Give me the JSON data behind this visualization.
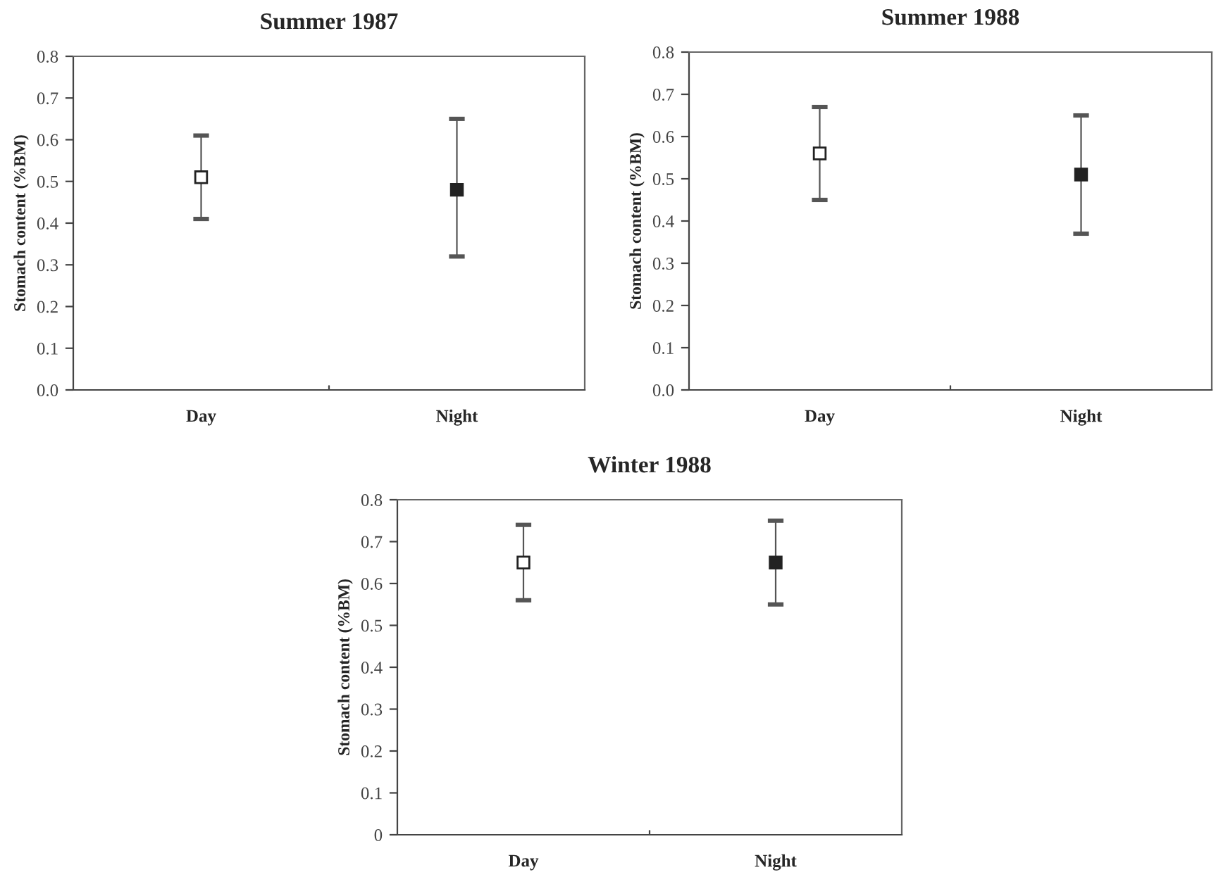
{
  "chart_data": [
    {
      "type": "scatter",
      "title": "Summer 1987",
      "ylabel": "Stomach content (%BM)",
      "categories": [
        "Day",
        "Night"
      ],
      "values": [
        0.51,
        0.48
      ],
      "errors": [
        [
          0.41,
          0.61
        ],
        [
          0.32,
          0.65
        ]
      ],
      "colors": [
        "#ffffff",
        "#222222"
      ],
      "marker": "square",
      "ylim": [
        0,
        0.8
      ],
      "yticks": [
        {
          "value": 0,
          "label": "0.0"
        },
        0.1,
        0.2,
        0.3,
        0.4,
        0.5,
        0.6,
        0.7,
        0.8
      ],
      "grid": false,
      "legend": false
    },
    {
      "type": "scatter",
      "title": "Summer 1988",
      "ylabel": "Stomach content (%BM)",
      "categories": [
        "Day",
        "Night"
      ],
      "values": [
        0.56,
        0.51
      ],
      "errors": [
        [
          0.45,
          0.67
        ],
        [
          0.37,
          0.65
        ]
      ],
      "colors": [
        "#ffffff",
        "#222222"
      ],
      "marker": "square",
      "ylim": [
        0,
        0.8
      ],
      "yticks": [
        {
          "value": 0,
          "label": "0.0"
        },
        0.1,
        0.2,
        0.3,
        0.4,
        0.5,
        0.6,
        0.7,
        0.8
      ],
      "grid": false,
      "legend": false
    },
    {
      "type": "scatter",
      "title": "Winter 1988",
      "ylabel": "Stomach content (%BM)",
      "categories": [
        "Day",
        "Night"
      ],
      "values": [
        0.65,
        0.65
      ],
      "errors": [
        [
          0.56,
          0.74
        ],
        [
          0.55,
          0.75
        ]
      ],
      "colors": [
        "#ffffff",
        "#222222"
      ],
      "marker": "square",
      "ylim": [
        0,
        0.8
      ],
      "yticks": [
        0,
        0.1,
        0.2,
        0.3,
        0.4,
        0.5,
        0.6,
        0.7,
        0.8
      ],
      "grid": false,
      "legend": false
    }
  ]
}
